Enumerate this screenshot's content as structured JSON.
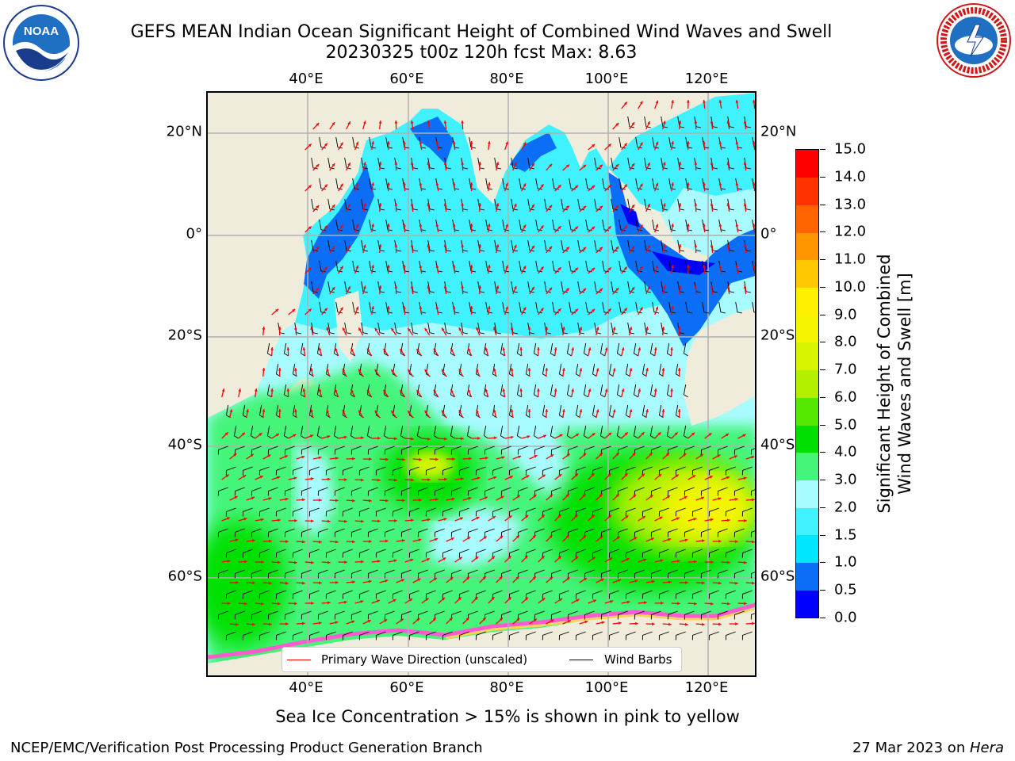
{
  "header": {
    "title_line1": "GEFS MEAN Indian Ocean Significant Height of Combined Wind Waves and Swell",
    "title_line2": "20230325 t00z 120h fcst   Max: 8.63"
  },
  "logos": {
    "left": {
      "name": "noaa-logo",
      "text": "NOAA",
      "ring_text": "NATIONAL OCEANIC AND ATMOSPHERIC ADMINISTRATION · U.S. DEPARTMENT OF COMMERCE"
    },
    "right": {
      "name": "nws-logo",
      "ring_text": "NATIONAL WEATHER SERVICE"
    }
  },
  "map": {
    "lon_ticks": [
      "40°E",
      "60°E",
      "80°E",
      "100°E",
      "120°E"
    ],
    "lat_ticks": [
      "20°N",
      "0°",
      "20°S",
      "40°S",
      "60°S"
    ],
    "lon_values": [
      40,
      60,
      80,
      100,
      120
    ],
    "lat_values": [
      20,
      0,
      -20,
      -40,
      -60
    ],
    "lon_range": [
      20,
      130
    ],
    "lat_range": [
      -70,
      27
    ],
    "grid": true,
    "land_color": "#efecdc",
    "wave_arrow_color": "#ff0000",
    "wind_barb_color": "#000000",
    "fields": [
      {
        "level": 5,
        "lon_range": [
          20,
          130
        ],
        "lat_range": [
          -70,
          27
        ]
      },
      {
        "level": 3,
        "lon_range": [
          20,
          128
        ],
        "lat_range": [
          -70,
          27
        ]
      }
    ]
  },
  "colorbar": {
    "label": "Significant Height of Combined Wind Waves and Swell [m]",
    "label_line1": "Significant Height of Combined",
    "label_line2": "Wind Waves and Swell [m]",
    "ticks": [
      "0.0",
      "0.5",
      "1.0",
      "1.5",
      "2.0",
      "3.0",
      "4.0",
      "5.0",
      "6.0",
      "7.0",
      "8.0",
      "9.0",
      "10.0",
      "11.0",
      "12.0",
      "13.0",
      "14.0",
      "15.0"
    ],
    "colors": [
      "#0000ff",
      "#0a6ef6",
      "#00e6ff",
      "#40f2ff",
      "#a8fbff",
      "#44f57a",
      "#00e000",
      "#55e800",
      "#b3f000",
      "#d7f500",
      "#f5f500",
      "#fff000",
      "#ffc800",
      "#ff9600",
      "#ff6400",
      "#ff3200",
      "#ff0000"
    ]
  },
  "legend": {
    "wave_label": "Primary Wave Direction (unscaled)",
    "wind_label": "Wind Barbs"
  },
  "footer": {
    "note": "Sea Ice Concentration > 15% is shown in pink to yellow",
    "left": "NCEP/EMC/Verification Post Processing Product Generation Branch",
    "right_prefix": "27 Mar 2023 on ",
    "right_host": "Hera"
  }
}
